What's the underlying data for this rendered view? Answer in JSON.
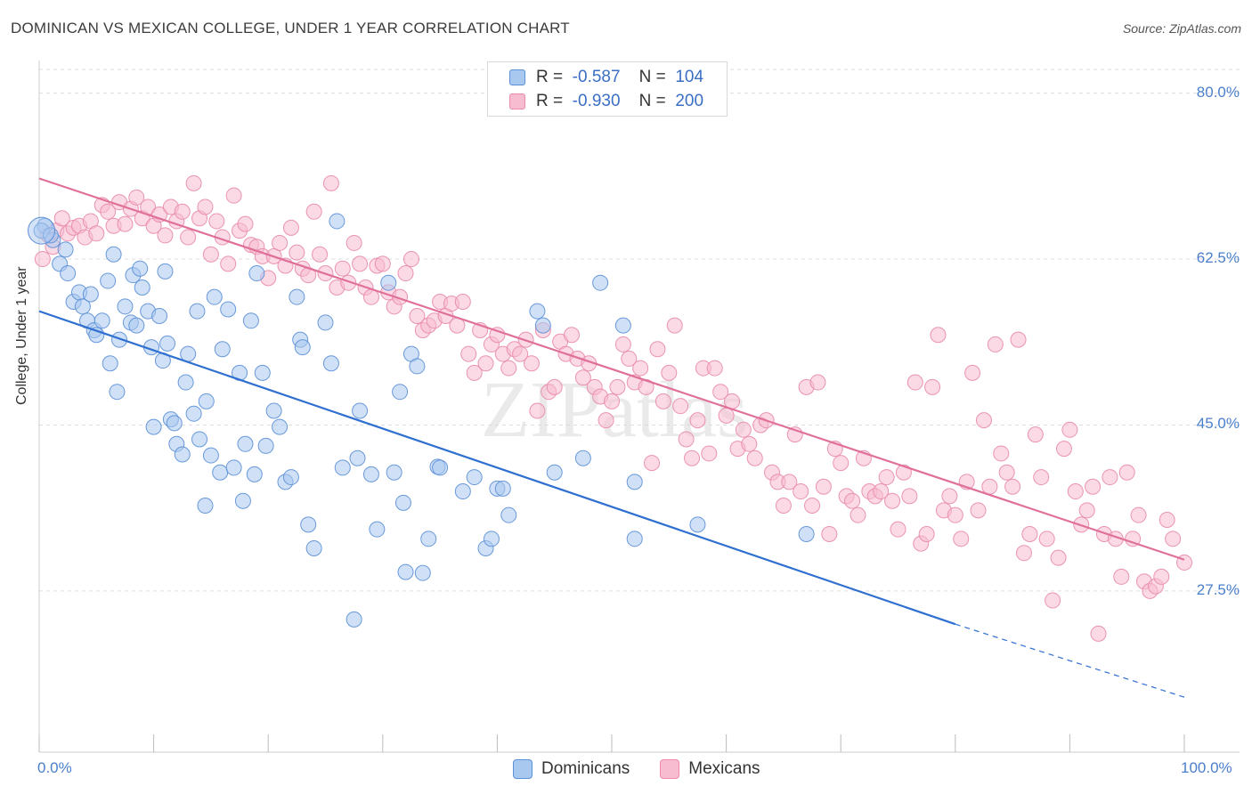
{
  "title": "DOMINICAN VS MEXICAN COLLEGE, UNDER 1 YEAR CORRELATION CHART",
  "source": "Source: ZipAtlas.com",
  "watermark": "ZIPatlas",
  "colors": {
    "dominicans_fill": "#a9c8f0",
    "dominicans_stroke": "#5b8fd6",
    "dominicans_line": "#2e6fd0",
    "mexicans_fill": "#f7bccf",
    "mexicans_stroke": "#e88aa8",
    "mexicans_line": "#e0709a",
    "tick_text": "#4a7fcc",
    "grid": "#dddddd"
  },
  "legend": {
    "r_label": "R =",
    "n_label": "N =",
    "rows": [
      {
        "series": "Dominicans",
        "r": "-0.587",
        "n": "104"
      },
      {
        "series": "Mexicans",
        "r": "-0.930",
        "n": "200"
      }
    ]
  },
  "bottom_legend": [
    "Dominicans",
    "Mexicans"
  ],
  "chart_data": {
    "type": "scatter",
    "title": "DOMINICAN VS MEXICAN COLLEGE, UNDER 1 YEAR CORRELATION CHART",
    "xlabel": "",
    "ylabel": "College, Under 1 year",
    "x_tick_labels": [
      "0.0%",
      "100.0%"
    ],
    "y_tick_labels": [
      "27.5%",
      "45.0%",
      "62.5%",
      "80.0%"
    ],
    "y_ticks": [
      27.5,
      45.0,
      62.5,
      80.0
    ],
    "xlim": [
      0,
      100
    ],
    "ylim": [
      10.5,
      82.5
    ],
    "grid": true,
    "legend_position": "top-center",
    "series": [
      {
        "name": "Dominicans",
        "r": -0.587,
        "n": 104,
        "trend": {
          "x0": 0,
          "y0": 57.0,
          "x1": 80,
          "y1": 24.0,
          "dashed_to_x": 100,
          "dashed_to_y": 16.3
        },
        "points": [
          [
            0.5,
            66.0
          ],
          [
            1.2,
            64.5
          ],
          [
            1.8,
            62.0
          ],
          [
            2.3,
            63.5
          ],
          [
            2.5,
            61.0
          ],
          [
            3.0,
            58.0
          ],
          [
            3.5,
            59.0
          ],
          [
            3.8,
            57.5
          ],
          [
            4.2,
            56.0
          ],
          [
            4.5,
            58.8
          ],
          [
            4.8,
            55.0
          ],
          [
            5.0,
            54.5
          ],
          [
            5.5,
            56.0
          ],
          [
            6.0,
            60.2
          ],
          [
            6.5,
            63.0
          ],
          [
            6.2,
            51.5
          ],
          [
            6.8,
            48.5
          ],
          [
            7.0,
            54.0
          ],
          [
            7.5,
            57.5
          ],
          [
            8.0,
            55.8
          ],
          [
            8.2,
            60.8
          ],
          [
            8.5,
            55.5
          ],
          [
            8.8,
            61.5
          ],
          [
            9.0,
            59.5
          ],
          [
            9.5,
            57.0
          ],
          [
            9.8,
            53.2
          ],
          [
            10.0,
            44.8
          ],
          [
            10.5,
            56.5
          ],
          [
            10.8,
            51.8
          ],
          [
            11.0,
            61.2
          ],
          [
            11.2,
            53.6
          ],
          [
            11.5,
            45.6
          ],
          [
            11.8,
            45.2
          ],
          [
            12.0,
            43.0
          ],
          [
            12.5,
            41.9
          ],
          [
            12.8,
            49.5
          ],
          [
            13.0,
            52.5
          ],
          [
            13.5,
            46.2
          ],
          [
            13.8,
            57.0
          ],
          [
            14.0,
            43.5
          ],
          [
            14.5,
            36.5
          ],
          [
            14.6,
            47.5
          ],
          [
            15.0,
            41.8
          ],
          [
            15.3,
            58.5
          ],
          [
            15.8,
            40.0
          ],
          [
            16.0,
            53.0
          ],
          [
            16.5,
            57.2
          ],
          [
            17.0,
            40.5
          ],
          [
            17.5,
            50.5
          ],
          [
            17.8,
            37.0
          ],
          [
            18.0,
            43.0
          ],
          [
            18.5,
            56.0
          ],
          [
            18.8,
            39.8
          ],
          [
            19.0,
            61.0
          ],
          [
            19.5,
            50.5
          ],
          [
            19.8,
            42.8
          ],
          [
            20.5,
            46.5
          ],
          [
            21.0,
            44.8
          ],
          [
            21.5,
            39.0
          ],
          [
            22.0,
            39.5
          ],
          [
            22.5,
            58.5
          ],
          [
            22.8,
            54.0
          ],
          [
            23.0,
            53.2
          ],
          [
            23.5,
            34.5
          ],
          [
            24.0,
            32.0
          ],
          [
            25.0,
            55.8
          ],
          [
            25.5,
            51.5
          ],
          [
            26.0,
            66.5
          ],
          [
            26.5,
            40.5
          ],
          [
            27.5,
            24.5
          ],
          [
            27.8,
            41.5
          ],
          [
            28.0,
            46.5
          ],
          [
            29.0,
            39.8
          ],
          [
            29.5,
            34.0
          ],
          [
            30.5,
            60.0
          ],
          [
            31.0,
            40.0
          ],
          [
            31.5,
            48.5
          ],
          [
            31.8,
            36.8
          ],
          [
            32.0,
            29.5
          ],
          [
            32.5,
            52.5
          ],
          [
            33.0,
            51.2
          ],
          [
            33.5,
            29.4
          ],
          [
            34.0,
            33.0
          ],
          [
            34.8,
            40.6
          ],
          [
            35.0,
            40.5
          ],
          [
            37.0,
            38.0
          ],
          [
            38.0,
            39.5
          ],
          [
            39.0,
            32.0
          ],
          [
            39.5,
            33.0
          ],
          [
            40.0,
            38.3
          ],
          [
            40.5,
            38.3
          ],
          [
            41.0,
            35.5
          ],
          [
            43.5,
            57.0
          ],
          [
            44.0,
            55.5
          ],
          [
            45.0,
            40.0
          ],
          [
            47.5,
            41.5
          ],
          [
            49.0,
            60.0
          ],
          [
            51.0,
            55.5
          ],
          [
            52.0,
            39.0
          ],
          [
            52.0,
            33.0
          ],
          [
            57.5,
            34.5
          ],
          [
            67.0,
            33.5
          ],
          [
            0.2,
            65.5
          ],
          [
            1.0,
            65.0
          ]
        ]
      },
      {
        "name": "Mexicans",
        "r": -0.93,
        "n": 200,
        "trend": {
          "x0": 0,
          "y0": 71.0,
          "x1": 100,
          "y1": 30.8
        },
        "points": [
          [
            0.3,
            62.5
          ],
          [
            0.8,
            65.0
          ],
          [
            1.2,
            63.8
          ],
          [
            1.5,
            65.5
          ],
          [
            2.0,
            66.8
          ],
          [
            2.5,
            65.2
          ],
          [
            3.0,
            65.8
          ],
          [
            3.5,
            66.0
          ],
          [
            4.0,
            64.8
          ],
          [
            4.5,
            66.5
          ],
          [
            5.0,
            65.2
          ],
          [
            5.5,
            68.2
          ],
          [
            6.0,
            67.5
          ],
          [
            6.5,
            66.0
          ],
          [
            7.0,
            68.5
          ],
          [
            7.5,
            66.2
          ],
          [
            8.0,
            67.8
          ],
          [
            8.5,
            69.0
          ],
          [
            9.0,
            66.8
          ],
          [
            9.5,
            68.0
          ],
          [
            10.0,
            66.0
          ],
          [
            10.5,
            67.2
          ],
          [
            11.0,
            65.0
          ],
          [
            11.5,
            68.0
          ],
          [
            12.0,
            66.5
          ],
          [
            12.5,
            67.5
          ],
          [
            13.0,
            64.8
          ],
          [
            13.5,
            70.5
          ],
          [
            14.0,
            66.8
          ],
          [
            14.5,
            68.0
          ],
          [
            15.0,
            63.0
          ],
          [
            15.5,
            66.5
          ],
          [
            16.0,
            64.8
          ],
          [
            16.5,
            62.0
          ],
          [
            17.0,
            69.2
          ],
          [
            17.5,
            65.5
          ],
          [
            18.0,
            66.2
          ],
          [
            18.5,
            64.0
          ],
          [
            19.0,
            63.8
          ],
          [
            19.5,
            62.8
          ],
          [
            20.0,
            60.5
          ],
          [
            20.5,
            62.8
          ],
          [
            21.0,
            64.2
          ],
          [
            21.5,
            61.8
          ],
          [
            22.0,
            65.8
          ],
          [
            22.5,
            63.2
          ],
          [
            23.0,
            61.5
          ],
          [
            23.5,
            60.8
          ],
          [
            24.0,
            67.5
          ],
          [
            24.5,
            63.0
          ],
          [
            25.0,
            61.0
          ],
          [
            25.5,
            70.5
          ],
          [
            26.0,
            59.5
          ],
          [
            26.5,
            61.5
          ],
          [
            27.0,
            60.0
          ],
          [
            27.5,
            64.2
          ],
          [
            28.0,
            62.0
          ],
          [
            28.5,
            59.5
          ],
          [
            29.0,
            58.5
          ],
          [
            29.5,
            61.8
          ],
          [
            30.0,
            62.0
          ],
          [
            30.5,
            59.0
          ],
          [
            31.0,
            57.5
          ],
          [
            31.5,
            58.5
          ],
          [
            32.0,
            61.0
          ],
          [
            32.5,
            62.5
          ],
          [
            33.0,
            56.5
          ],
          [
            33.5,
            55.0
          ],
          [
            34.0,
            55.5
          ],
          [
            34.5,
            56.0
          ],
          [
            35.0,
            58.0
          ],
          [
            35.5,
            56.5
          ],
          [
            36.0,
            57.8
          ],
          [
            36.5,
            55.5
          ],
          [
            37.0,
            58.0
          ],
          [
            37.5,
            52.5
          ],
          [
            38.0,
            50.5
          ],
          [
            38.5,
            55.0
          ],
          [
            39.0,
            51.5
          ],
          [
            39.5,
            53.5
          ],
          [
            40.0,
            54.5
          ],
          [
            40.5,
            52.5
          ],
          [
            41.0,
            51.0
          ],
          [
            41.5,
            53.0
          ],
          [
            42.0,
            52.5
          ],
          [
            42.5,
            54.0
          ],
          [
            43.0,
            51.5
          ],
          [
            43.5,
            46.5
          ],
          [
            44.0,
            55.0
          ],
          [
            44.5,
            48.5
          ],
          [
            45.0,
            49.0
          ],
          [
            45.5,
            53.8
          ],
          [
            46.0,
            52.5
          ],
          [
            46.5,
            54.5
          ],
          [
            47.0,
            52.0
          ],
          [
            47.5,
            50.0
          ],
          [
            48.0,
            51.5
          ],
          [
            48.5,
            49.0
          ],
          [
            49.0,
            48.0
          ],
          [
            49.5,
            45.5
          ],
          [
            50.0,
            47.5
          ],
          [
            50.5,
            49.0
          ],
          [
            51.0,
            53.5
          ],
          [
            51.5,
            52.0
          ],
          [
            52.0,
            49.5
          ],
          [
            52.5,
            51.0
          ],
          [
            53.0,
            49.0
          ],
          [
            53.5,
            41.0
          ],
          [
            54.0,
            53.0
          ],
          [
            54.5,
            47.5
          ],
          [
            55.0,
            50.5
          ],
          [
            55.5,
            55.5
          ],
          [
            56.0,
            47.0
          ],
          [
            56.5,
            43.5
          ],
          [
            57.0,
            41.5
          ],
          [
            57.5,
            45.5
          ],
          [
            58.0,
            51.0
          ],
          [
            58.5,
            42.0
          ],
          [
            59.0,
            51.0
          ],
          [
            59.5,
            48.5
          ],
          [
            60.0,
            46.0
          ],
          [
            60.5,
            47.5
          ],
          [
            61.0,
            42.5
          ],
          [
            61.5,
            44.5
          ],
          [
            62.0,
            43.0
          ],
          [
            62.5,
            41.5
          ],
          [
            63.0,
            45.0
          ],
          [
            63.5,
            45.5
          ],
          [
            64.0,
            40.0
          ],
          [
            64.5,
            39.0
          ],
          [
            65.0,
            36.5
          ],
          [
            65.5,
            39.0
          ],
          [
            66.0,
            44.0
          ],
          [
            66.5,
            38.0
          ],
          [
            67.0,
            49.0
          ],
          [
            67.5,
            36.5
          ],
          [
            68.0,
            49.5
          ],
          [
            68.5,
            38.5
          ],
          [
            69.0,
            33.5
          ],
          [
            69.5,
            42.5
          ],
          [
            70.0,
            41.0
          ],
          [
            70.5,
            37.5
          ],
          [
            71.0,
            37.0
          ],
          [
            71.5,
            35.5
          ],
          [
            72.0,
            41.5
          ],
          [
            72.5,
            38.0
          ],
          [
            73.0,
            37.5
          ],
          [
            73.5,
            38.0
          ],
          [
            74.0,
            39.5
          ],
          [
            74.5,
            37.0
          ],
          [
            75.0,
            34.0
          ],
          [
            75.5,
            40.0
          ],
          [
            76.0,
            37.5
          ],
          [
            76.5,
            49.5
          ],
          [
            77.0,
            32.5
          ],
          [
            77.5,
            33.5
          ],
          [
            78.0,
            49.0
          ],
          [
            78.5,
            54.5
          ],
          [
            79.0,
            36.0
          ],
          [
            79.5,
            37.5
          ],
          [
            80.0,
            35.5
          ],
          [
            80.5,
            33.0
          ],
          [
            81.0,
            39.0
          ],
          [
            81.5,
            50.5
          ],
          [
            82.0,
            36.0
          ],
          [
            82.5,
            45.5
          ],
          [
            83.0,
            38.5
          ],
          [
            83.5,
            53.5
          ],
          [
            84.0,
            42.0
          ],
          [
            84.5,
            40.0
          ],
          [
            85.0,
            38.5
          ],
          [
            85.5,
            54.0
          ],
          [
            86.0,
            31.5
          ],
          [
            86.5,
            33.5
          ],
          [
            87.0,
            44.0
          ],
          [
            87.5,
            39.5
          ],
          [
            88.0,
            33.0
          ],
          [
            88.5,
            26.5
          ],
          [
            89.0,
            31.0
          ],
          [
            89.5,
            42.5
          ],
          [
            90.0,
            44.5
          ],
          [
            90.5,
            38.0
          ],
          [
            91.0,
            34.5
          ],
          [
            91.5,
            36.0
          ],
          [
            92.0,
            38.5
          ],
          [
            92.5,
            23.0
          ],
          [
            93.0,
            33.5
          ],
          [
            93.5,
            39.5
          ],
          [
            94.0,
            33.0
          ],
          [
            94.5,
            29.0
          ],
          [
            95.0,
            40.0
          ],
          [
            95.5,
            33.0
          ],
          [
            96.0,
            35.5
          ],
          [
            96.5,
            28.5
          ],
          [
            97.0,
            27.5
          ],
          [
            97.5,
            28.0
          ],
          [
            98.0,
            29.0
          ],
          [
            98.5,
            35.0
          ],
          [
            99.0,
            33.0
          ],
          [
            100.0,
            30.5
          ]
        ]
      }
    ]
  }
}
